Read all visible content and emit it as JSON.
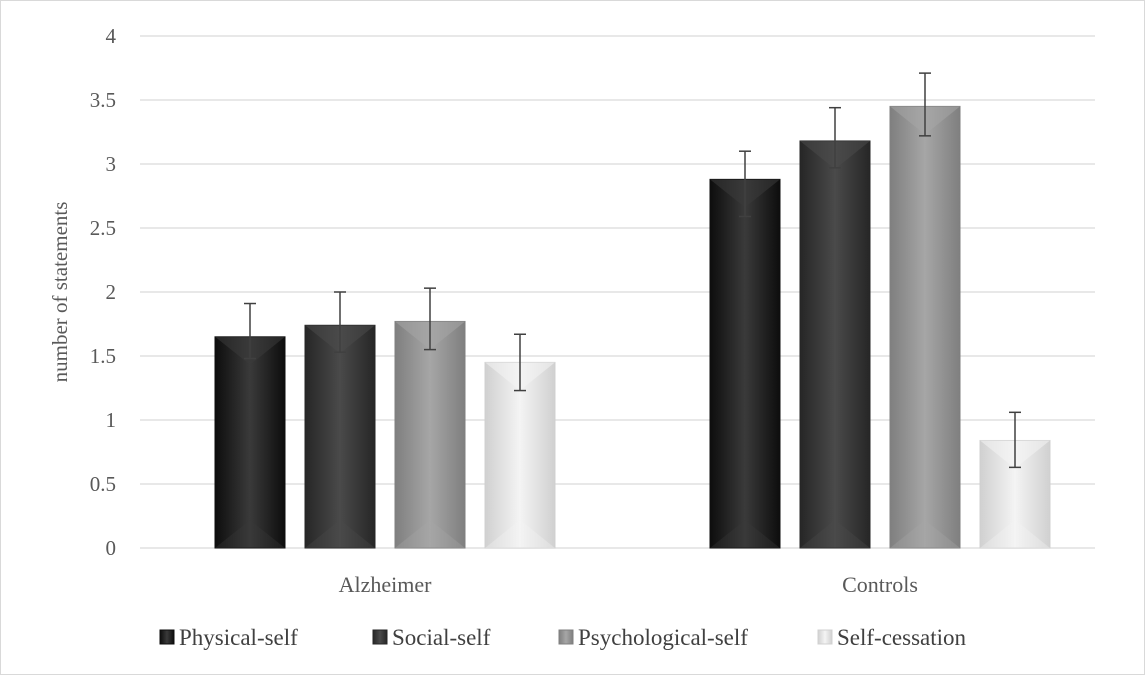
{
  "chart_data": {
    "type": "bar",
    "title": "",
    "xlabel": "",
    "ylabel": "number of statements",
    "ylim": [
      0,
      4
    ],
    "yticks": [
      "0",
      "0.5",
      "1",
      "1.5",
      "2",
      "2.5",
      "3",
      "3.5",
      "4"
    ],
    "grid": true,
    "legend_position": "bottom",
    "categories": [
      "Alzheimer",
      "Controls"
    ],
    "series": [
      {
        "name": "Physical-self",
        "values": [
          1.65,
          2.88
        ],
        "error_low": [
          1.48,
          2.59
        ],
        "error_high": [
          1.91,
          3.1
        ],
        "color": "#0d0d0d",
        "light": "#3a3a3a"
      },
      {
        "name": "Social-self",
        "values": [
          1.74,
          3.18
        ],
        "error_low": [
          1.53,
          2.97
        ],
        "error_high": [
          2.0,
          3.44
        ],
        "color": "#262626",
        "light": "#4a4a4a"
      },
      {
        "name": "Psychological-self",
        "values": [
          1.77,
          3.45
        ],
        "error_low": [
          1.55,
          3.22
        ],
        "error_high": [
          2.03,
          3.71
        ],
        "color": "#7f7f7f",
        "light": "#a6a6a6"
      },
      {
        "name": "Self-cessation",
        "values": [
          1.45,
          0.84
        ],
        "error_low": [
          1.23,
          0.63
        ],
        "error_high": [
          1.67,
          1.06
        ],
        "color": "#d0d0d0",
        "light": "#f4f4f4"
      }
    ]
  }
}
